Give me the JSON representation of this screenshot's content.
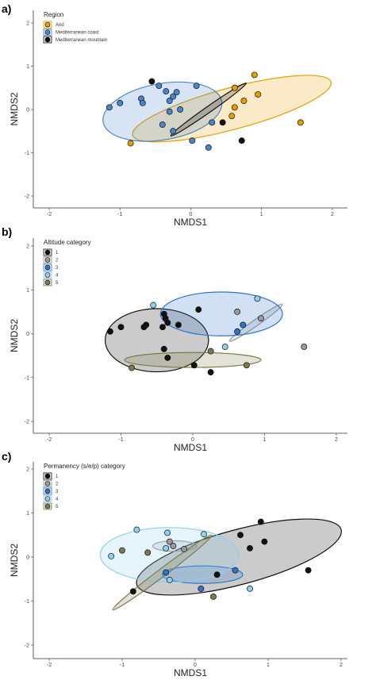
{
  "chart_data": [
    {
      "panel_label": "a)",
      "type": "scatter",
      "xlabel": "NMDS1",
      "ylabel": "NMDS2",
      "xlim": [
        -2.1,
        2.1
      ],
      "ylim": [
        -2.1,
        2.1
      ],
      "xticks": [
        "-2",
        "-1",
        "0",
        "1",
        "2"
      ],
      "yticks": [
        "-2",
        "-1",
        "0",
        "1",
        "2"
      ],
      "grid": false,
      "legend": {
        "title": "Region",
        "placement": "top-left"
      },
      "series": [
        {
          "name": "Arid",
          "color": "#E69F00",
          "points": [
            [
              0.9,
              0.8
            ],
            [
              0.62,
              0.5
            ],
            [
              0.95,
              0.35
            ],
            [
              0.75,
              0.2
            ],
            [
              0.62,
              0.05
            ],
            [
              0.58,
              -0.15
            ],
            [
              1.55,
              -0.3
            ],
            [
              -0.85,
              -0.78
            ]
          ],
          "ellipse": {
            "cx": 0.58,
            "cy": 0.02,
            "rx": 1.45,
            "ry": 0.48,
            "angle": 15
          }
        },
        {
          "name": "Mediterranean coast",
          "color": "#4A86C7",
          "points": [
            [
              -0.45,
              0.55
            ],
            [
              0.08,
              0.55
            ],
            [
              -0.35,
              0.42
            ],
            [
              -0.2,
              0.4
            ],
            [
              -0.25,
              0.3
            ],
            [
              -0.7,
              0.25
            ],
            [
              -0.3,
              0.2
            ],
            [
              -1.0,
              0.15
            ],
            [
              -0.68,
              0.15
            ],
            [
              -1.15,
              0.05
            ],
            [
              -0.3,
              -0.05
            ],
            [
              -0.15,
              0.0
            ],
            [
              -0.4,
              -0.35
            ],
            [
              -0.25,
              -0.5
            ],
            [
              0.3,
              -0.3
            ],
            [
              0.02,
              -0.72
            ],
            [
              0.25,
              -0.88
            ]
          ],
          "ellipse": {
            "cx": -0.4,
            "cy": -0.05,
            "rx": 0.85,
            "ry": 0.65,
            "angle": 10
          }
        },
        {
          "name": "Mediterranean mountain",
          "color": "#111111",
          "points": [
            [
              -0.55,
              0.65
            ],
            [
              0.45,
              -0.3
            ],
            [
              0.72,
              -0.72
            ]
          ],
          "ellipse": {
            "cx": 0.25,
            "cy": 0.0,
            "rx": 0.65,
            "ry": 0.07,
            "angle": 35
          }
        }
      ]
    },
    {
      "panel_label": "b)",
      "type": "scatter",
      "xlabel": "NMDS1",
      "ylabel": "NMDS2",
      "xlim": [
        -2.1,
        2.1
      ],
      "ylim": [
        -2.1,
        2.1
      ],
      "xticks": [
        "-2",
        "-1",
        "0",
        "1",
        "2"
      ],
      "yticks": [
        "-2",
        "-1",
        "0",
        "1",
        "2"
      ],
      "grid": false,
      "legend": {
        "title": "Altitude category",
        "placement": "top-left"
      },
      "series": [
        {
          "name": "1",
          "color": "#111111",
          "points": [
            [
              -1.15,
              0.05
            ],
            [
              -1.0,
              0.15
            ],
            [
              -0.68,
              0.15
            ],
            [
              -0.65,
              0.2
            ],
            [
              -0.4,
              0.45
            ],
            [
              -0.38,
              0.35
            ],
            [
              -0.35,
              0.25
            ],
            [
              -0.42,
              0.15
            ],
            [
              -0.2,
              0.2
            ],
            [
              0.08,
              0.55
            ],
            [
              -0.4,
              -0.35
            ],
            [
              -0.35,
              -0.55
            ],
            [
              0.02,
              -0.72
            ],
            [
              0.25,
              -0.88
            ]
          ],
          "ellipse": {
            "cx": -0.5,
            "cy": -0.15,
            "rx": 0.72,
            "ry": 0.72,
            "angle": 0
          }
        },
        {
          "name": "2",
          "color": "#9A9A9A",
          "points": [
            [
              0.62,
              0.5
            ],
            [
              0.95,
              0.35
            ],
            [
              1.55,
              -0.3
            ]
          ],
          "ellipse": {
            "cx": 0.88,
            "cy": 0.25,
            "rx": 0.45,
            "ry": 0.07,
            "angle": 35
          }
        },
        {
          "name": "3",
          "color": "#2F74C8",
          "points": [
            [
              0.62,
              0.05
            ],
            [
              0.7,
              0.2
            ]
          ],
          "ellipse": {
            "cx": 0.4,
            "cy": 0.45,
            "rx": 0.85,
            "ry": 0.5,
            "angle": 0
          }
        },
        {
          "name": "4",
          "color": "#8FD0F0",
          "points": [
            [
              -0.55,
              0.65
            ],
            [
              0.9,
              0.8
            ],
            [
              0.45,
              -0.3
            ]
          ],
          "ellipse": null
        },
        {
          "name": "5",
          "color": "#7A7A4A",
          "points": [
            [
              -0.85,
              -0.78
            ],
            [
              0.25,
              -0.4
            ],
            [
              0.75,
              -0.72
            ]
          ],
          "ellipse": {
            "cx": 0.0,
            "cy": -0.6,
            "rx": 0.95,
            "ry": 0.17,
            "angle": 0
          }
        }
      ]
    },
    {
      "panel_label": "c)",
      "type": "scatter",
      "xlabel": "NMDS1",
      "ylabel": "NMDS2",
      "xlim": [
        -2.1,
        2.1
      ],
      "ylim": [
        -2.1,
        2.1
      ],
      "xticks": [
        "-2",
        "-1",
        "0",
        "1",
        "2"
      ],
      "yticks": [
        "-2",
        "-1",
        "0",
        "1",
        "2"
      ],
      "grid": false,
      "legend": {
        "title": "Permanency (s/e/p) category",
        "placement": "top-left"
      },
      "series": [
        {
          "name": "1",
          "color": "#111111",
          "points": [
            [
              0.9,
              0.8
            ],
            [
              0.62,
              0.5
            ],
            [
              0.95,
              0.35
            ],
            [
              0.75,
              0.2
            ],
            [
              1.55,
              -0.3
            ],
            [
              0.3,
              -0.4
            ],
            [
              -0.85,
              -0.78
            ]
          ],
          "ellipse": {
            "cx": 0.6,
            "cy": 0.0,
            "rx": 1.45,
            "ry": 0.62,
            "angle": 15
          }
        },
        {
          "name": "2",
          "color": "#9A9A9A",
          "points": [
            [
              -0.35,
              0.35
            ],
            [
              -0.3,
              0.25
            ],
            [
              -0.15,
              0.18
            ]
          ],
          "ellipse": {
            "cx": -0.28,
            "cy": 0.25,
            "rx": 0.3,
            "ry": 0.12,
            "angle": 0
          }
        },
        {
          "name": "3",
          "color": "#2F74C8",
          "points": [
            [
              -0.4,
              -0.35
            ],
            [
              0.08,
              -0.72
            ],
            [
              0.55,
              -0.3
            ]
          ],
          "ellipse": {
            "cx": 0.1,
            "cy": -0.4,
            "rx": 0.55,
            "ry": 0.2,
            "angle": 0
          }
        },
        {
          "name": "4",
          "color": "#8FD0F0",
          "points": [
            [
              -0.8,
              0.62
            ],
            [
              -0.38,
              0.55
            ],
            [
              -0.4,
              0.2
            ],
            [
              -1.15,
              0.02
            ],
            [
              -0.35,
              -0.52
            ],
            [
              0.12,
              0.52
            ],
            [
              0.75,
              -0.72
            ]
          ],
          "ellipse": {
            "cx": -0.35,
            "cy": 0.05,
            "rx": 0.95,
            "ry": 0.62,
            "angle": 0
          }
        },
        {
          "name": "5",
          "color": "#7A7A4A",
          "points": [
            [
              -1.0,
              0.15
            ],
            [
              -0.65,
              0.1
            ],
            [
              0.25,
              -0.9
            ]
          ],
          "ellipse": {
            "cx": -0.45,
            "cy": -0.35,
            "rx": 0.85,
            "ry": 0.09,
            "angle": 37
          }
        }
      ]
    }
  ]
}
